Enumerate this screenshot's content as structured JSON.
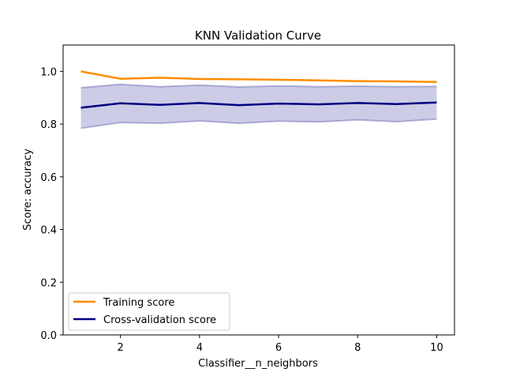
{
  "chart_data": {
    "type": "line",
    "title": "KNN Validation Curve",
    "xlabel": "Classifier__n_neighbors",
    "ylabel": "Score: accuracy",
    "x": [
      1,
      2,
      3,
      4,
      5,
      6,
      7,
      8,
      9,
      10
    ],
    "xlim": [
      0.55,
      10.45
    ],
    "ylim": [
      0,
      1.1
    ],
    "xticks": [
      2,
      4,
      6,
      8,
      10
    ],
    "yticks": [
      0.0,
      0.2,
      0.4,
      0.6,
      0.8,
      1.0
    ],
    "xtick_labels": [
      "2",
      "4",
      "6",
      "8",
      "10"
    ],
    "ytick_labels": [
      "0.0",
      "0.2",
      "0.4",
      "0.6",
      "0.8",
      "1.0"
    ],
    "grid": false,
    "legend_position": "lower-left",
    "series": [
      {
        "name": "Training score",
        "color": "#ff8c00",
        "values": [
          1.0,
          0.972,
          0.976,
          0.971,
          0.97,
          0.968,
          0.966,
          0.963,
          0.962,
          0.96
        ]
      },
      {
        "name": "Cross-validation score",
        "color": "#000080",
        "values": [
          0.862,
          0.879,
          0.873,
          0.88,
          0.872,
          0.878,
          0.875,
          0.88,
          0.876,
          0.882
        ],
        "band_lower": [
          0.784,
          0.806,
          0.803,
          0.812,
          0.803,
          0.811,
          0.808,
          0.816,
          0.809,
          0.819
        ],
        "band_upper": [
          0.938,
          0.951,
          0.942,
          0.948,
          0.941,
          0.945,
          0.942,
          0.944,
          0.942,
          0.943
        ],
        "band_color": "#000080"
      }
    ]
  }
}
